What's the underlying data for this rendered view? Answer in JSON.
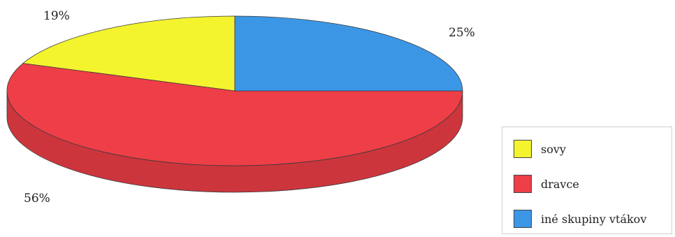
{
  "chart_data": {
    "type": "pie",
    "style": "3d",
    "categories": [
      "sovy",
      "dravce",
      "iné skupiny vtákov"
    ],
    "values": [
      19,
      56,
      25
    ],
    "value_labels": [
      "19%",
      "56%",
      "25%"
    ],
    "colors": [
      "#f4f42e",
      "#ee3e47",
      "#3b97e6"
    ],
    "legend_position": "bottom-right",
    "title": ""
  }
}
